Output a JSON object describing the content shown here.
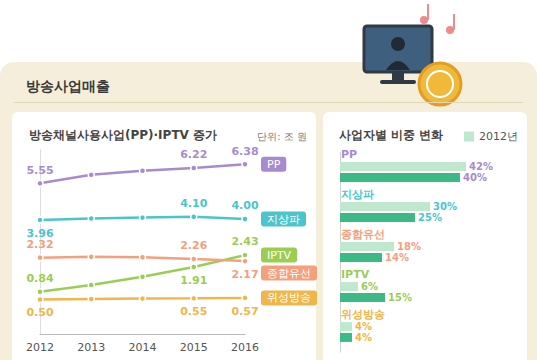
{
  "header": {
    "title": "방송사업매출"
  },
  "chart_data": [
    {
      "type": "line",
      "title": "방송채널사용사업(PP)·IPTV 증가",
      "subtitle": "단위: 조 원",
      "categories": [
        "2012",
        "2013",
        "2014",
        "2015",
        "2016"
      ],
      "series": [
        {
          "name": "PP",
          "color": "#a78bd0",
          "values": [
            5.55,
            5.92,
            6.1,
            6.22,
            6.38
          ],
          "value_labels": [
            "5.55",
            null,
            null,
            "6.22",
            "6.38"
          ]
        },
        {
          "name": "지상파",
          "color": "#4cc4cc",
          "values": [
            3.96,
            4.02,
            4.06,
            4.1,
            4.0
          ],
          "value_labels": [
            "3.96",
            null,
            null,
            "4.10",
            "4.00"
          ]
        },
        {
          "name": "IPTV",
          "color": "#9bcd55",
          "values": [
            0.84,
            1.13,
            1.49,
            1.91,
            2.43
          ],
          "value_labels": [
            "0.84",
            null,
            null,
            "1.91",
            "2.43"
          ]
        },
        {
          "name": "종합유선",
          "color": "#f3a07c",
          "values": [
            2.32,
            2.36,
            2.34,
            2.26,
            2.17
          ],
          "value_labels": [
            "2.32",
            null,
            null,
            "2.26",
            "2.17"
          ]
        },
        {
          "name": "위성방송",
          "color": "#efb64b",
          "values": [
            0.5,
            0.52,
            0.54,
            0.55,
            0.57
          ],
          "value_labels": [
            "0.50",
            null,
            null,
            "0.55",
            "0.57"
          ]
        }
      ],
      "ylim": [
        -1,
        7
      ],
      "tick_labels": "x",
      "grid": false,
      "data_labels": true,
      "marker": "circle"
    },
    {
      "type": "bar",
      "title": "사업자별 비중 변화",
      "orientation": "horizontal",
      "categories": [
        "PP",
        "지상파",
        "종합유선",
        "IPTV",
        "위성방송"
      ],
      "series": [
        {
          "name": "2012년",
          "color": "#bfe8cf",
          "values": [
            42,
            30,
            18,
            6,
            4
          ],
          "value_labels": [
            "42%",
            "30%",
            "18%",
            "6%",
            "4%"
          ]
        },
        {
          "color": "#3cba85",
          "values": [
            40,
            25,
            14,
            15,
            4
          ],
          "value_labels": [
            "40%",
            "25%",
            "14%",
            "15%",
            "4%"
          ]
        }
      ],
      "xlim": [
        0,
        50
      ],
      "tick_labels": false,
      "grid": false,
      "data_labels": true,
      "legend": "top-right"
    }
  ]
}
